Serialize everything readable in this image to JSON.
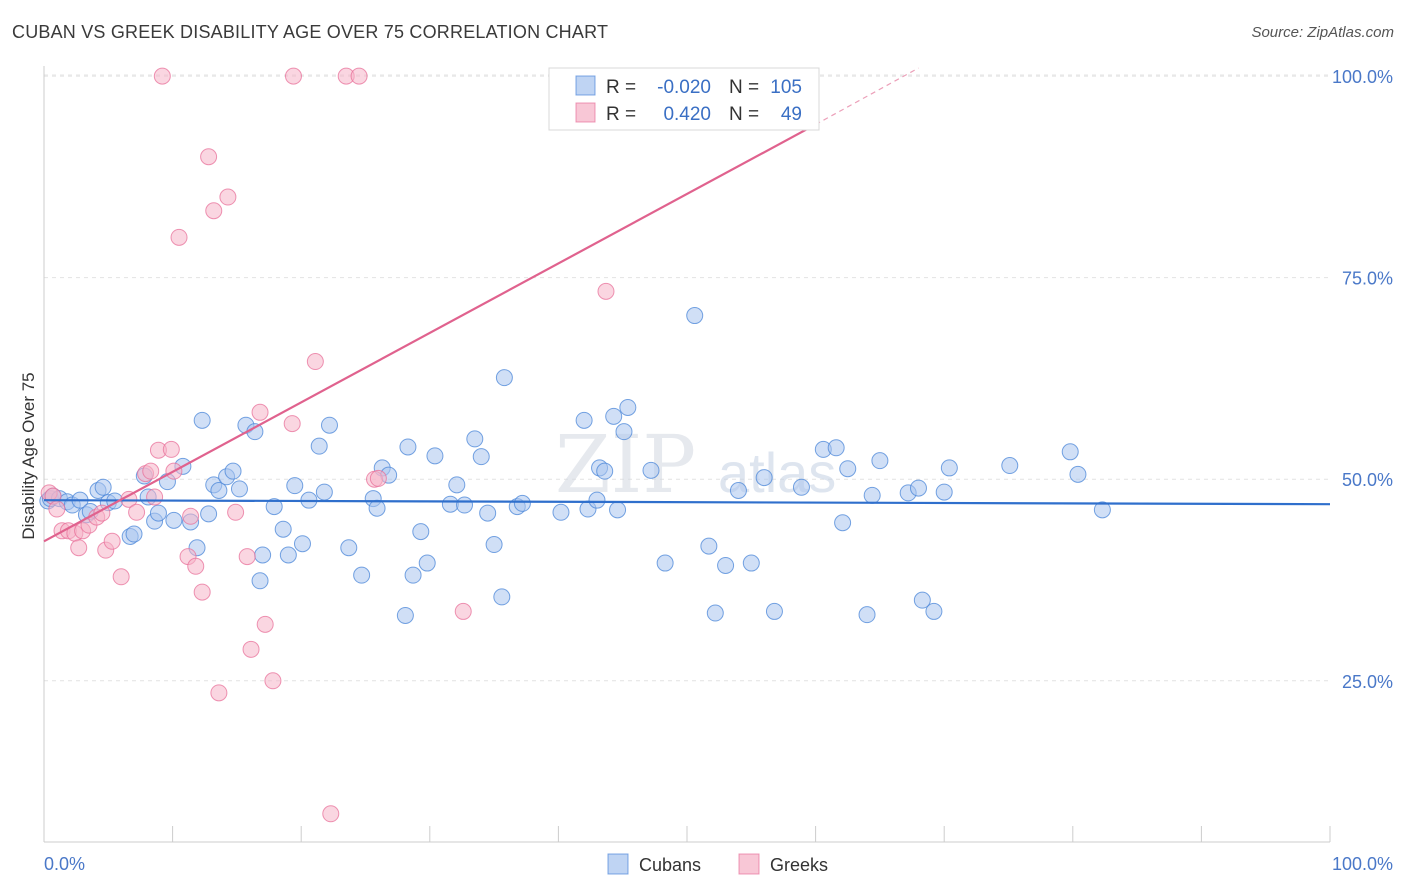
{
  "header": {
    "title": "CUBAN VS GREEK DISABILITY AGE OVER 75 CORRELATION CHART",
    "source": "Source: ZipAtlas.com"
  },
  "watermark": {
    "zip": "ZIP",
    "atlas": "atlas"
  },
  "legend_box": {
    "rows": [
      {
        "r_label": "R =",
        "r_value": "-0.020",
        "n_label": "N =",
        "n_value": "105",
        "color": "#a9c5ef"
      },
      {
        "r_label": "R =",
        "r_value": "0.420",
        "n_label": "N =",
        "n_value": "49",
        "color": "#f5b4c8"
      }
    ]
  },
  "bottom_legend": [
    {
      "label": "Cubans",
      "color": "#a9c5ef"
    },
    {
      "label": "Greeks",
      "color": "#f5b4c8"
    }
  ],
  "chart_data": {
    "type": "scatter",
    "ylabel": "Disability Age Over 75",
    "xlim": [
      0,
      100
    ],
    "ylim": [
      5,
      102
    ],
    "x_tick_labels": [
      "0.0%",
      "100.0%"
    ],
    "y_ticks": [
      25,
      50,
      75,
      100
    ],
    "y_tick_labels": [
      "25.0%",
      "50.0%",
      "75.0%",
      "100.0%"
    ],
    "grid": true,
    "colors": {
      "cubans": "#4a86d8",
      "cubans_fill": "#a9c5ef",
      "greeks": "#e8709a",
      "greeks_fill": "#f5b4c8"
    },
    "series": [
      {
        "name": "Cubans",
        "trend": {
          "x": [
            0,
            100
          ],
          "y": [
            47.4,
            46.9
          ]
        },
        "points": [
          [
            0.3,
            47.3
          ],
          [
            0.5,
            47.6
          ],
          [
            0.7,
            47.9
          ],
          [
            1.2,
            47.6
          ],
          [
            1.8,
            47.2
          ],
          [
            2.2,
            46.8
          ],
          [
            2.8,
            47.4
          ],
          [
            3.3,
            45.6
          ],
          [
            3.6,
            46.0
          ],
          [
            4.2,
            48.6
          ],
          [
            4.6,
            49.0
          ],
          [
            5.0,
            47.1
          ],
          [
            5.5,
            47.3
          ],
          [
            6.7,
            42.9
          ],
          [
            7.0,
            43.2
          ],
          [
            7.8,
            50.4
          ],
          [
            8.1,
            47.8
          ],
          [
            8.6,
            44.8
          ],
          [
            8.9,
            45.8
          ],
          [
            9.6,
            49.7
          ],
          [
            10.1,
            44.9
          ],
          [
            10.8,
            51.6
          ],
          [
            11.4,
            44.7
          ],
          [
            11.9,
            41.5
          ],
          [
            12.3,
            57.3
          ],
          [
            12.8,
            45.7
          ],
          [
            13.2,
            49.3
          ],
          [
            13.6,
            48.6
          ],
          [
            14.2,
            50.3
          ],
          [
            14.7,
            51.0
          ],
          [
            15.2,
            48.8
          ],
          [
            15.7,
            56.7
          ],
          [
            16.4,
            55.9
          ],
          [
            16.8,
            37.4
          ],
          [
            17.0,
            40.6
          ],
          [
            17.9,
            46.6
          ],
          [
            18.6,
            43.8
          ],
          [
            19.0,
            40.6
          ],
          [
            19.5,
            49.2
          ],
          [
            20.1,
            42.0
          ],
          [
            20.6,
            47.4
          ],
          [
            21.4,
            54.1
          ],
          [
            21.8,
            48.4
          ],
          [
            22.2,
            56.7
          ],
          [
            23.7,
            41.5
          ],
          [
            24.7,
            38.1
          ],
          [
            25.6,
            47.6
          ],
          [
            25.9,
            46.4
          ],
          [
            26.3,
            51.4
          ],
          [
            26.8,
            50.5
          ],
          [
            28.1,
            33.1
          ],
          [
            28.3,
            54.0
          ],
          [
            28.7,
            38.1
          ],
          [
            29.3,
            43.5
          ],
          [
            29.8,
            39.6
          ],
          [
            30.4,
            52.9
          ],
          [
            31.6,
            46.9
          ],
          [
            32.1,
            49.3
          ],
          [
            32.7,
            46.8
          ],
          [
            33.5,
            55.0
          ],
          [
            34.0,
            52.8
          ],
          [
            34.5,
            45.8
          ],
          [
            35.0,
            41.9
          ],
          [
            35.6,
            35.4
          ],
          [
            36.8,
            46.6
          ],
          [
            37.2,
            47.0
          ],
          [
            40.2,
            45.9
          ],
          [
            42.0,
            57.3
          ],
          [
            42.3,
            46.3
          ],
          [
            43.0,
            47.4
          ],
          [
            43.2,
            51.4
          ],
          [
            43.6,
            51.0
          ],
          [
            44.3,
            57.8
          ],
          [
            44.6,
            46.2
          ],
          [
            45.1,
            55.9
          ],
          [
            45.4,
            58.9
          ],
          [
            48.3,
            39.6
          ],
          [
            50.6,
            70.3
          ],
          [
            51.7,
            41.7
          ],
          [
            52.2,
            33.4
          ],
          [
            53.0,
            39.3
          ],
          [
            54.0,
            48.6
          ],
          [
            55.0,
            39.6
          ],
          [
            56.8,
            33.6
          ],
          [
            58.9,
            49.0
          ],
          [
            60.6,
            53.7
          ],
          [
            61.6,
            53.9
          ],
          [
            62.1,
            44.6
          ],
          [
            62.5,
            51.3
          ],
          [
            64.0,
            33.2
          ],
          [
            64.4,
            48.0
          ],
          [
            65.0,
            52.3
          ],
          [
            67.2,
            48.3
          ],
          [
            68.0,
            48.9
          ],
          [
            68.3,
            35.0
          ],
          [
            69.2,
            33.6
          ],
          [
            70.0,
            48.4
          ],
          [
            70.4,
            51.4
          ],
          [
            75.1,
            51.7
          ],
          [
            79.8,
            53.4
          ],
          [
            80.4,
            50.6
          ],
          [
            82.3,
            46.2
          ],
          [
            35.8,
            62.6
          ],
          [
            47.2,
            51.1
          ],
          [
            56.0,
            50.2
          ]
        ]
      },
      {
        "name": "Greeks",
        "trend": {
          "x": [
            0,
            60
          ],
          "y": [
            42.3,
            94.0
          ]
        },
        "trend_dashed": {
          "x": [
            60,
            68
          ],
          "y": [
            94.0,
            101.0
          ]
        },
        "points": [
          [
            0.4,
            48.3
          ],
          [
            0.7,
            47.9
          ],
          [
            1.0,
            46.3
          ],
          [
            1.4,
            43.6
          ],
          [
            1.9,
            43.6
          ],
          [
            2.4,
            43.3
          ],
          [
            2.7,
            41.5
          ],
          [
            3.0,
            43.6
          ],
          [
            3.5,
            44.3
          ],
          [
            4.1,
            45.3
          ],
          [
            4.5,
            45.8
          ],
          [
            4.8,
            41.2
          ],
          [
            5.3,
            42.3
          ],
          [
            6.0,
            37.9
          ],
          [
            6.6,
            47.5
          ],
          [
            7.2,
            45.9
          ],
          [
            7.9,
            50.7
          ],
          [
            8.3,
            51.0
          ],
          [
            8.6,
            47.8
          ],
          [
            8.9,
            53.6
          ],
          [
            9.9,
            53.7
          ],
          [
            10.1,
            51.0
          ],
          [
            10.5,
            80.0
          ],
          [
            11.2,
            40.4
          ],
          [
            11.4,
            45.4
          ],
          [
            11.8,
            39.2
          ],
          [
            12.3,
            36.0
          ],
          [
            12.8,
            90.0
          ],
          [
            13.2,
            83.3
          ],
          [
            13.6,
            23.5
          ],
          [
            14.3,
            85.0
          ],
          [
            14.9,
            45.9
          ],
          [
            15.8,
            40.4
          ],
          [
            16.1,
            28.9
          ],
          [
            16.8,
            58.3
          ],
          [
            17.2,
            32.0
          ],
          [
            17.8,
            25.0
          ],
          [
            19.3,
            56.9
          ],
          [
            19.4,
            100.0
          ],
          [
            21.1,
            64.6
          ],
          [
            22.3,
            8.5
          ],
          [
            23.5,
            100.0
          ],
          [
            24.5,
            100.0
          ],
          [
            25.7,
            50.0
          ],
          [
            26.0,
            50.1
          ],
          [
            32.6,
            33.6
          ],
          [
            43.7,
            73.3
          ],
          [
            9.2,
            100.0
          ],
          [
            41.2,
            100.0
          ]
        ]
      }
    ]
  }
}
